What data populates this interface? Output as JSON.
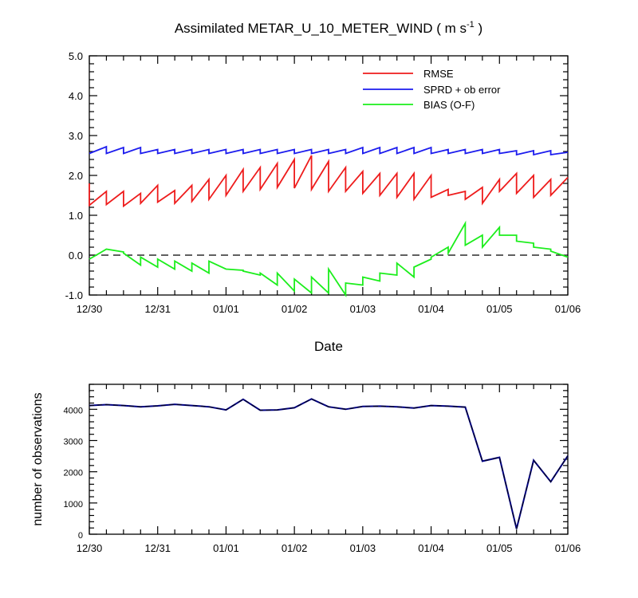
{
  "chart_data": [
    {
      "type": "line",
      "title": "Assimilated METAR_U_10_METER_WIND ( m s",
      "title_superscript": "-1",
      "title_close": " )",
      "xlabel": "Date",
      "ylabel": "",
      "ylim": [
        -1.0,
        5.0
      ],
      "y_ticks": [
        "-1.0",
        "0.0",
        "1.0",
        "2.0",
        "3.0",
        "4.0",
        "5.0"
      ],
      "y_tick_values": [
        -1,
        0,
        1,
        2,
        3,
        4,
        5
      ],
      "x_tick_labels": [
        "12/30",
        "12/31",
        "01/01",
        "01/02",
        "01/03",
        "01/04",
        "01/05",
        "01/06"
      ],
      "xlim_days": [
        0,
        7
      ],
      "legend": [
        "RMSE",
        "SPRD + ob error",
        "BIAS (O-F)"
      ],
      "reference_line": 0,
      "series": [
        {
          "name": "RMSE",
          "color": "#ee1c1c",
          "x": [
            0,
            0,
            0.25,
            0.25,
            0.5,
            0.5,
            0.75,
            0.75,
            1.0,
            1.0,
            1.25,
            1.25,
            1.5,
            1.5,
            1.75,
            1.75,
            2.0,
            2.0,
            2.25,
            2.25,
            2.5,
            2.5,
            2.75,
            2.75,
            3.0,
            3.0,
            3.25,
            3.25,
            3.5,
            3.5,
            3.75,
            3.75,
            4.0,
            4.0,
            4.25,
            4.25,
            4.5,
            4.5,
            4.75,
            4.75,
            5.0,
            5.0,
            5.25,
            5.25,
            5.5,
            5.5,
            5.75,
            5.75,
            6.0,
            6.0,
            6.25,
            6.25,
            6.5,
            6.5,
            6.75,
            6.75,
            7.0
          ],
          "values": [
            1.8,
            1.25,
            1.6,
            1.27,
            1.6,
            1.23,
            1.55,
            1.3,
            1.75,
            1.33,
            1.62,
            1.3,
            1.75,
            1.35,
            1.9,
            1.4,
            2.0,
            1.5,
            2.15,
            1.6,
            2.2,
            1.65,
            2.3,
            1.7,
            2.4,
            1.68,
            2.5,
            1.65,
            2.35,
            1.6,
            2.2,
            1.6,
            2.1,
            1.55,
            2.05,
            1.5,
            2.05,
            1.45,
            2.05,
            1.4,
            2.0,
            1.45,
            1.65,
            1.5,
            1.6,
            1.4,
            1.7,
            1.3,
            1.9,
            1.6,
            2.05,
            1.55,
            2.0,
            1.45,
            1.9,
            1.5,
            1.95
          ]
        },
        {
          "name": "SPRD + ob error",
          "color": "#1c1cee",
          "x": [
            0,
            0.25,
            0.25,
            0.5,
            0.5,
            0.75,
            0.75,
            1.0,
            1.0,
            1.25,
            1.25,
            1.5,
            1.5,
            1.75,
            1.75,
            2.0,
            2.0,
            2.25,
            2.25,
            2.5,
            2.5,
            2.75,
            2.75,
            3.0,
            3.0,
            3.25,
            3.25,
            3.5,
            3.5,
            3.75,
            3.75,
            4.0,
            4.0,
            4.25,
            4.25,
            4.5,
            4.5,
            4.75,
            4.75,
            5.0,
            5.0,
            5.25,
            5.25,
            5.5,
            5.5,
            5.75,
            5.75,
            6.0,
            6.0,
            6.25,
            6.25,
            6.5,
            6.5,
            6.75,
            6.75,
            7.0
          ],
          "values": [
            2.55,
            2.72,
            2.55,
            2.7,
            2.55,
            2.7,
            2.55,
            2.65,
            2.55,
            2.65,
            2.55,
            2.65,
            2.55,
            2.65,
            2.55,
            2.65,
            2.55,
            2.65,
            2.55,
            2.65,
            2.55,
            2.65,
            2.55,
            2.65,
            2.55,
            2.65,
            2.55,
            2.65,
            2.55,
            2.65,
            2.55,
            2.7,
            2.55,
            2.7,
            2.55,
            2.7,
            2.55,
            2.7,
            2.55,
            2.7,
            2.55,
            2.65,
            2.55,
            2.65,
            2.55,
            2.65,
            2.55,
            2.65,
            2.55,
            2.62,
            2.52,
            2.62,
            2.52,
            2.62,
            2.52,
            2.58
          ]
        },
        {
          "name": "BIAS (O-F)",
          "color": "#1cee1c",
          "x": [
            0,
            0.25,
            0.5,
            0.5,
            0.75,
            0.75,
            1.0,
            1.0,
            1.25,
            1.25,
            1.5,
            1.5,
            1.75,
            1.75,
            2.0,
            2.0,
            2.25,
            2.25,
            2.5,
            2.5,
            2.75,
            2.75,
            3.0,
            3.0,
            3.25,
            3.25,
            3.5,
            3.5,
            3.75,
            3.75,
            4.0,
            4.0,
            4.25,
            4.25,
            4.5,
            4.5,
            4.75,
            4.75,
            5.0,
            5.0,
            5.25,
            5.25,
            5.5,
            5.5,
            5.75,
            5.75,
            6.0,
            6.0,
            6.25,
            6.25,
            6.5,
            6.5,
            6.75,
            6.75,
            7.0
          ],
          "values": [
            -0.1,
            0.15,
            0.08,
            0.05,
            -0.25,
            -0.05,
            -0.3,
            -0.1,
            -0.35,
            -0.15,
            -0.4,
            -0.2,
            -0.45,
            -0.15,
            -0.35,
            -0.35,
            -0.38,
            -0.4,
            -0.5,
            -0.45,
            -0.75,
            -0.45,
            -0.9,
            -0.6,
            -0.95,
            -0.55,
            -0.95,
            -0.35,
            -1.0,
            -0.7,
            -0.75,
            -0.55,
            -0.65,
            -0.45,
            -0.5,
            -0.2,
            -0.55,
            -0.3,
            -0.1,
            -0.05,
            0.2,
            0.05,
            0.8,
            0.25,
            0.5,
            0.2,
            0.7,
            0.5,
            0.5,
            0.35,
            0.3,
            0.2,
            0.15,
            0.1,
            -0.05
          ]
        }
      ]
    },
    {
      "type": "line",
      "title": "",
      "xlabel": "",
      "ylabel": "number of observations",
      "ylim": [
        0,
        4800
      ],
      "y_ticks": [
        "0",
        "1000",
        "2000",
        "3000",
        "4000"
      ],
      "y_tick_values": [
        0,
        1000,
        2000,
        3000,
        4000
      ],
      "x_tick_labels": [
        "12/30",
        "12/31",
        "01/01",
        "01/02",
        "01/03",
        "01/04",
        "01/05",
        "01/06"
      ],
      "xlim_days": [
        0,
        7
      ],
      "series": [
        {
          "name": "observations",
          "color": "#000080",
          "x": [
            0,
            0.25,
            0.5,
            0.75,
            1.0,
            1.25,
            1.5,
            1.75,
            2.0,
            2.25,
            2.5,
            2.75,
            3.0,
            3.25,
            3.5,
            3.75,
            4.0,
            4.25,
            4.5,
            4.75,
            5.0,
            5.25,
            5.5,
            5.75,
            6.0,
            6.25,
            6.5,
            6.75,
            7.0
          ],
          "values": [
            4120,
            4150,
            4120,
            4080,
            4110,
            4160,
            4120,
            4080,
            3980,
            4320,
            3970,
            3980,
            4050,
            4330,
            4080,
            4000,
            4090,
            4100,
            4080,
            4040,
            4120,
            4100,
            4070,
            2340,
            2460,
            170,
            2370,
            1680,
            2510
          ]
        }
      ]
    }
  ]
}
